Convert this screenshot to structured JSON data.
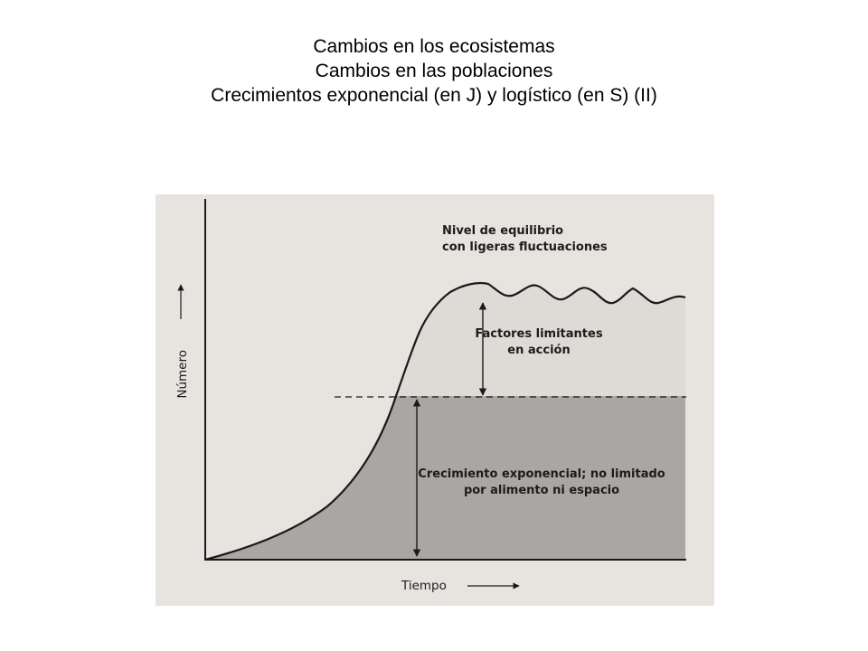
{
  "title_lines": [
    "Cambios en los ecosistemas",
    "Cambios en las poblaciones",
    "Crecimientos exponencial (en J) y logístico (en S) (II)"
  ],
  "diagram": {
    "y_axis_label": "Número",
    "x_axis_label": "Tiempo",
    "equilibrium_label": [
      "Nivel de equilibrio",
      "con ligeras fluctuaciones"
    ],
    "limiting_label": [
      "Factores limitantes",
      "en acción"
    ],
    "exponential_label": [
      "Crecimiento exponencial; no limitado",
      "por alimento ni espacio"
    ]
  },
  "colors": {
    "background": "#e7e4e0",
    "upper_region": "#dedad6",
    "lower_region": "#a9a6a3",
    "curve": "#1a1a1a"
  }
}
